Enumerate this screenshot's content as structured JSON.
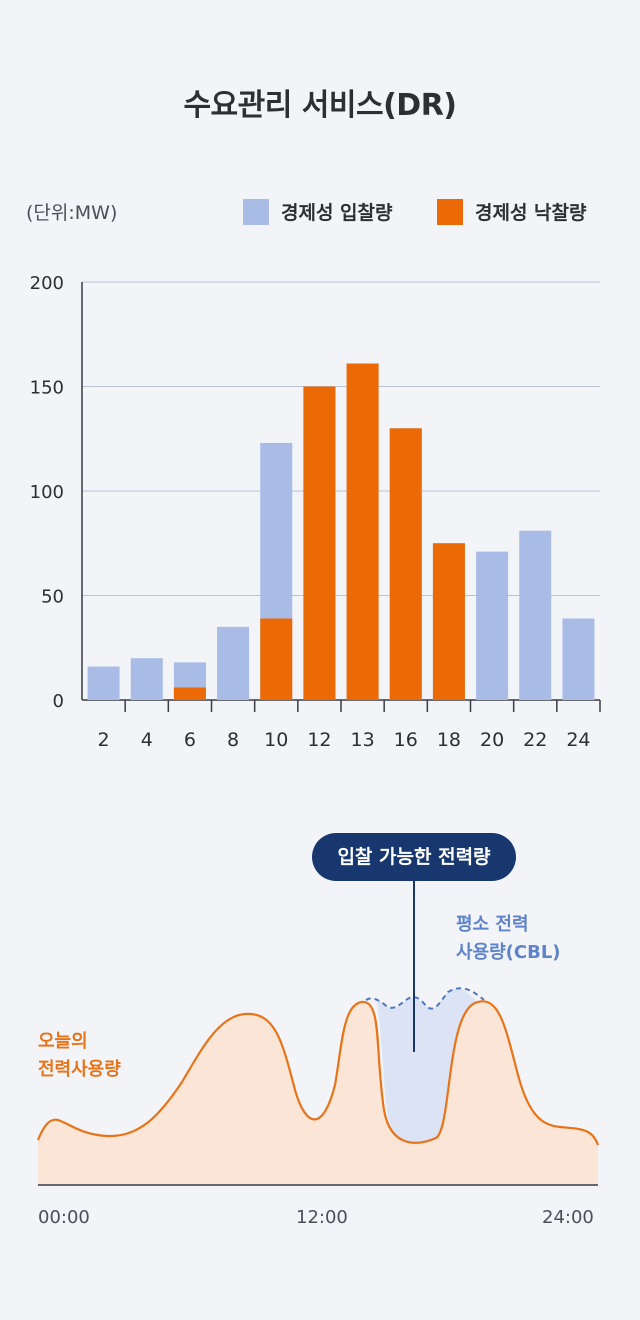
{
  "title": "수요관리 서비스(DR)",
  "unit_label": "(단위:MW)",
  "legend": {
    "bid": {
      "label": "경제성 입찰량",
      "color": "#a8bce6"
    },
    "award": {
      "label": "경제성 낙찰량",
      "color": "#eb6a05"
    }
  },
  "chart_data": [
    {
      "type": "bar",
      "categories": [
        "2",
        "4",
        "6",
        "8",
        "10",
        "12",
        "13",
        "16",
        "18",
        "20",
        "22",
        "24"
      ],
      "series": [
        {
          "name": "경제성 입찰량",
          "color": "#a8bce6",
          "values": [
            16,
            20,
            18,
            35,
            123,
            150,
            161,
            130,
            75,
            71,
            81,
            39
          ]
        },
        {
          "name": "경제성 낙찰량",
          "color": "#eb6a05",
          "values": [
            0,
            0,
            6,
            0,
            39,
            150,
            161,
            130,
            75,
            0,
            0,
            0
          ]
        }
      ],
      "yticks": [
        0,
        50,
        100,
        150,
        200
      ],
      "ylim": [
        0,
        200
      ],
      "grid": true,
      "legend_position": "top-right"
    },
    {
      "type": "area",
      "x_ticks": [
        "00:00",
        "12:00",
        "24:00"
      ],
      "series_labels": {
        "usage": "오늘의\n전력사용량",
        "cbl": "평소 전력\n사용량(CBL)"
      },
      "annotation": "입찰 가능한 전력량",
      "colors": {
        "usage_line": "#e8741a",
        "usage_fill": "#fbe5d6",
        "cbl_line": "#4f77c6",
        "cbl_fill": "#dbe3f5"
      }
    }
  ]
}
